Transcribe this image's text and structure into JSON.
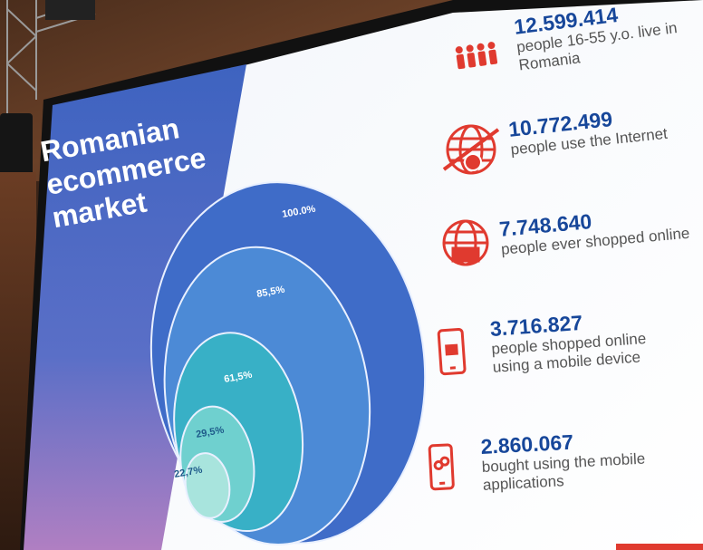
{
  "slide": {
    "title": "Romanian\necommerce\nmarket",
    "colors": {
      "panel_blue": "#4b6fc8",
      "circle_blue": "#3f6cc8",
      "circle_mid": "#4d8fd6",
      "circle_teal": "#39b1c6",
      "circle_light": "#6fd0cf",
      "circle_pale": "#a7e4dd",
      "number_blue": "#17479a",
      "icon_red": "#e03a2f"
    },
    "circles": [
      {
        "label": "100.0%",
        "value": 100.0
      },
      {
        "label": "85,5%",
        "value": 85.5
      },
      {
        "label": "61,5%",
        "value": 61.5
      },
      {
        "label": "29,5%",
        "value": 29.5
      },
      {
        "label": "22,7%",
        "value": 22.7
      }
    ],
    "stats": [
      {
        "icon": "people-icon",
        "number": "12.599.414",
        "description": "people 16-55 y.o. live in\nRomania"
      },
      {
        "icon": "globe-internet-icon",
        "number": "10.772.499",
        "description": "people use the Internet"
      },
      {
        "icon": "globe-shop-icon",
        "number": "7.748.640",
        "description": "people ever shopped online"
      },
      {
        "icon": "mobile-basket-icon",
        "number": "3.716.827",
        "description": "people shopped online\nusing a mobile device"
      },
      {
        "icon": "mobile-app-icon",
        "number": "2.860.067",
        "description": "bought using the mobile\napplications"
      }
    ]
  }
}
